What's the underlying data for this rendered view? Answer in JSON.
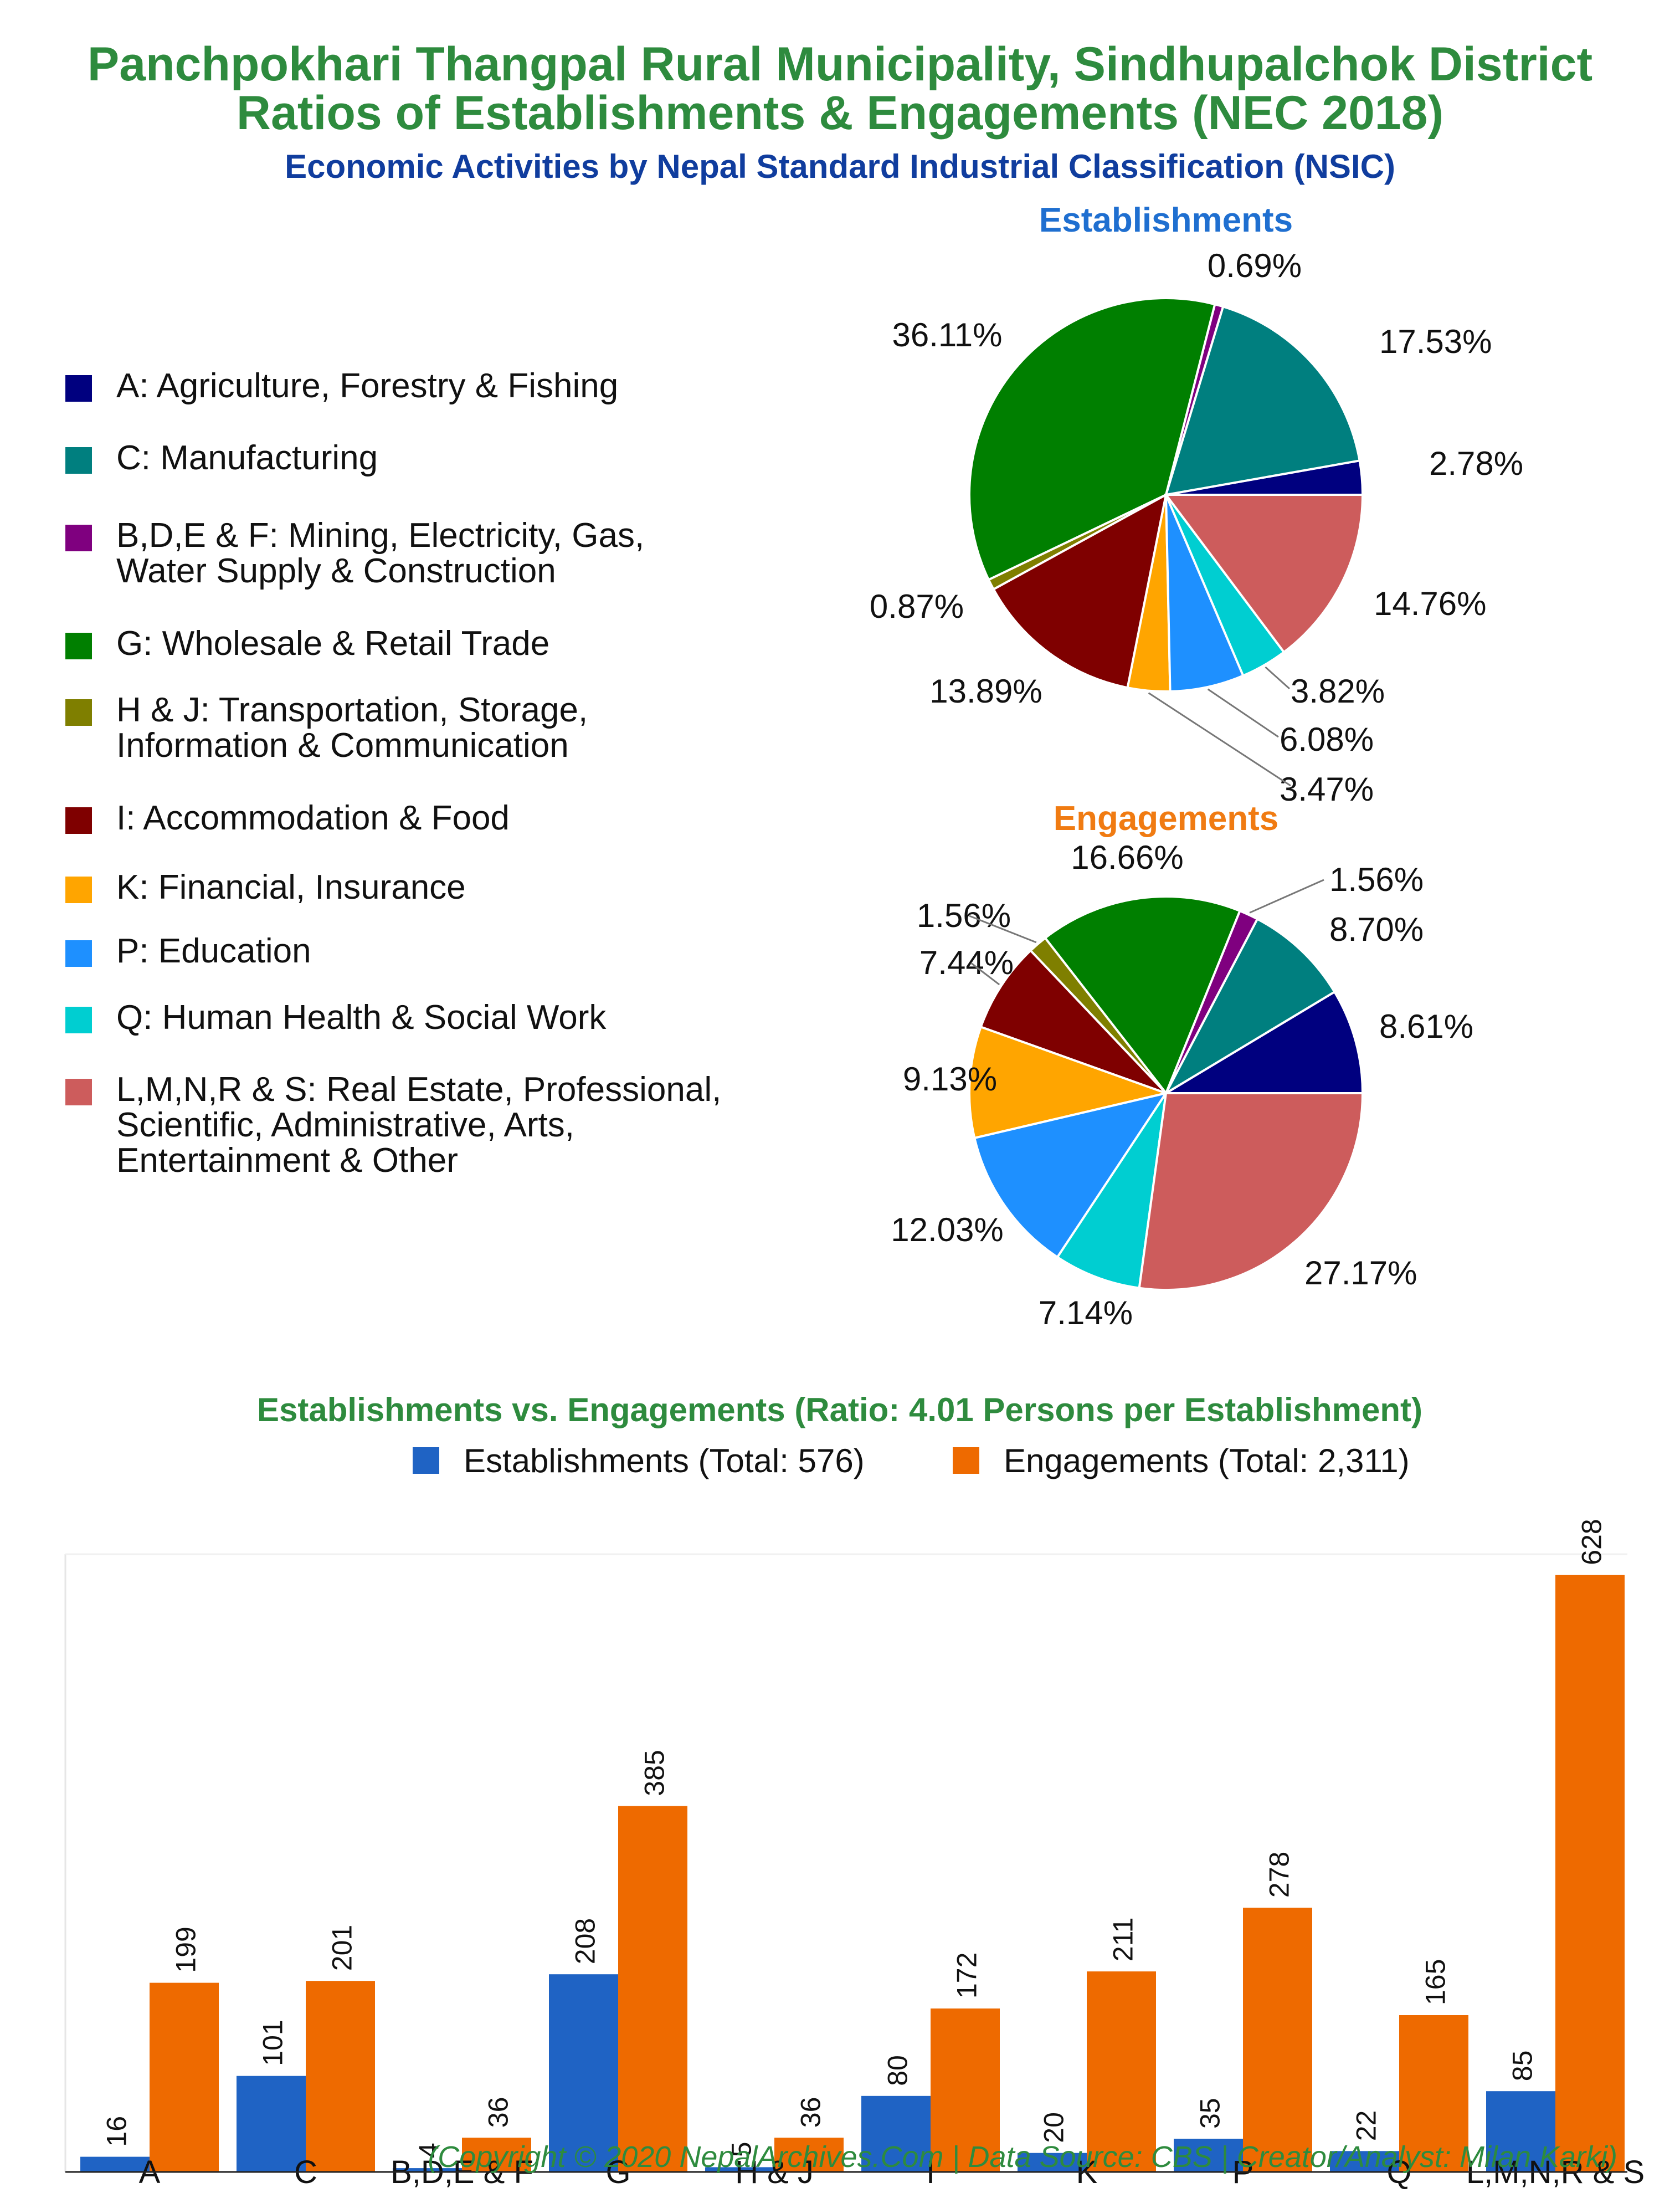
{
  "titles": {
    "line1": "Panchpokhari Thangpal Rural Municipality, Sindhupalchok District",
    "line2": "Ratios of Establishments & Engagements (NEC 2018)",
    "line3": "Economic Activities by Nepal Standard Industrial Classification (NSIC)"
  },
  "legend": [
    {
      "label": "A: Agriculture, Forestry & Fishing",
      "color": "#00007f"
    },
    {
      "label": "C: Manufacturing",
      "color": "#007f7f"
    },
    {
      "label": "B,D,E & F: Mining, Electricity, Gas,\nWater Supply & Construction",
      "color": "#7f007f"
    },
    {
      "label": "G: Wholesale & Retail Trade",
      "color": "#007f00"
    },
    {
      "label": "H & J: Transportation, Storage,\nInformation & Communication",
      "color": "#7f7f00"
    },
    {
      "label": "I: Accommodation & Food",
      "color": "#7f0000"
    },
    {
      "label": "K: Financial, Insurance",
      "color": "#ffa500"
    },
    {
      "label": "P: Education",
      "color": "#1e90ff"
    },
    {
      "label": "Q: Human Health & Social Work",
      "color": "#00ced1"
    },
    {
      "label": "L,M,N,R & S: Real Estate, Professional,\nScientific, Administrative, Arts,\nEntertainment & Other",
      "color": "#cd5c5c"
    }
  ],
  "chart_data": [
    {
      "type": "pie",
      "title": "Establishments",
      "title_color": "#1f6fd0",
      "categories": [
        "A",
        "C",
        "B,D,E & F",
        "G",
        "H & J",
        "I",
        "K",
        "P",
        "Q",
        "L,M,N,R & S"
      ],
      "values": [
        2.78,
        17.53,
        0.69,
        36.11,
        0.87,
        13.89,
        3.47,
        6.08,
        3.82,
        14.76
      ],
      "labels": [
        "2.78%",
        "17.53%",
        "0.69%",
        "36.11%",
        "0.87%",
        "13.89%",
        "3.47%",
        "6.08%",
        "3.82%",
        "14.76%"
      ]
    },
    {
      "type": "pie",
      "title": "Engagements",
      "title_color": "#f07b12",
      "categories": [
        "A",
        "C",
        "B,D,E & F",
        "G",
        "H & J",
        "I",
        "K",
        "P",
        "Q",
        "L,M,N,R & S"
      ],
      "values": [
        8.61,
        8.7,
        1.56,
        16.66,
        1.56,
        7.44,
        9.13,
        12.03,
        7.14,
        27.17
      ],
      "labels": [
        "8.61%",
        "8.70%",
        "1.56%",
        "16.66%",
        "1.56%",
        "7.44%",
        "9.13%",
        "12.03%",
        "7.14%",
        "27.17%"
      ]
    },
    {
      "type": "bar",
      "title": "Establishments vs. Engagements (Ratio: 4.01 Persons per Establishment)",
      "title_color": "#2e8b3e",
      "categories": [
        "A",
        "C",
        "B,D,E & F",
        "G",
        "H & J",
        "I",
        "K",
        "P",
        "Q",
        "L,M,N,R & S"
      ],
      "series": [
        {
          "name": "Establishments (Total: 576)",
          "color": "#1f63c4",
          "values": [
            16,
            101,
            4,
            208,
            5,
            80,
            20,
            35,
            22,
            85
          ]
        },
        {
          "name": "Engagements (Total: 2,311)",
          "color": "#ee6a00",
          "values": [
            199,
            201,
            36,
            385,
            36,
            172,
            211,
            278,
            165,
            628
          ]
        }
      ],
      "ylim": [
        0,
        650
      ],
      "legend": "top"
    }
  ],
  "copyright": "(Copyright © 2020 NepalArchives.Com | Data Source: CBS | Creator/Analyst: Milan Karki)"
}
